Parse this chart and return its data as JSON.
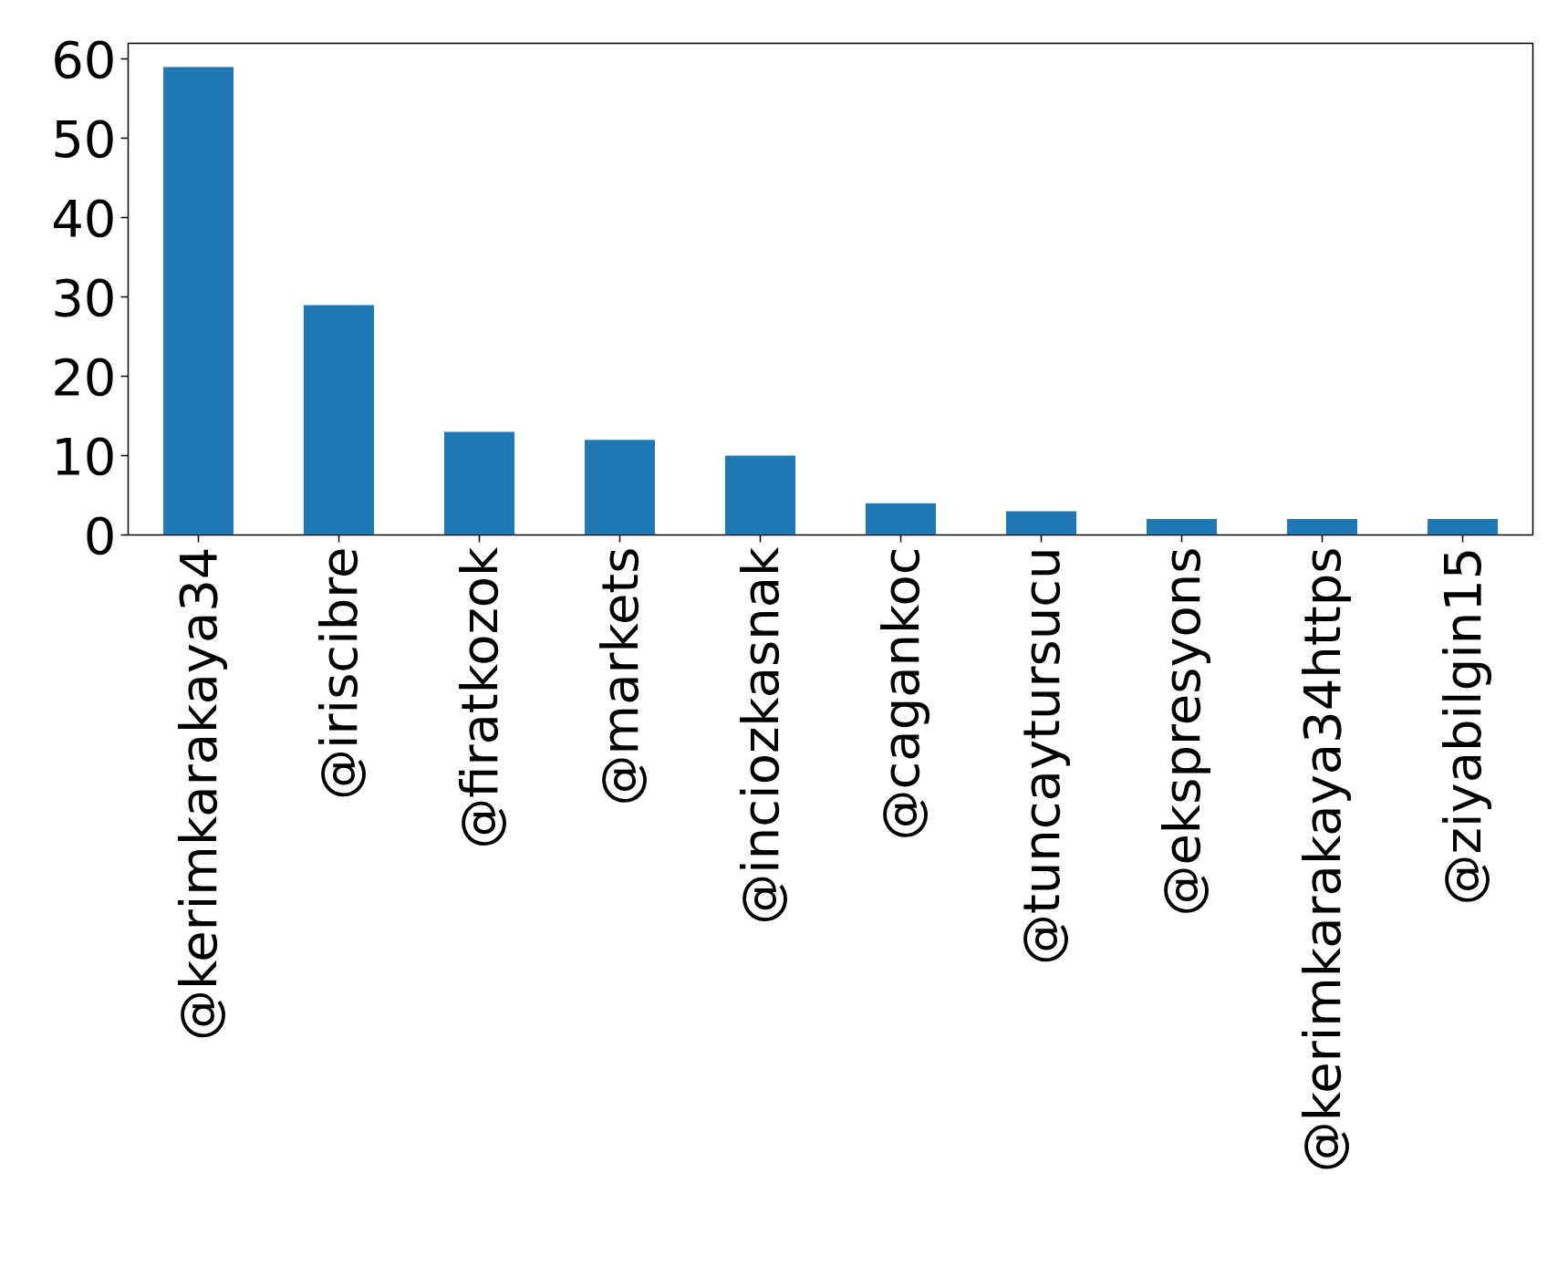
{
  "chart_data": {
    "type": "bar",
    "categories": [
      "@kerimkarakaya34",
      "@iriscibre",
      "@firatkozok",
      "@markets",
      "@inciozkasnak",
      "@cagankoc",
      "@tuncaytursucu",
      "@ekspresyons",
      "@kerimkarakaya34https",
      "@ziyabilgin15"
    ],
    "values": [
      59,
      29,
      13,
      12,
      10,
      4,
      3,
      2,
      2,
      2
    ],
    "color": "#1f77b4",
    "ylim": [
      0,
      62
    ],
    "yticks": [
      0,
      10,
      20,
      30,
      40,
      50,
      60
    ],
    "grid": false
  }
}
